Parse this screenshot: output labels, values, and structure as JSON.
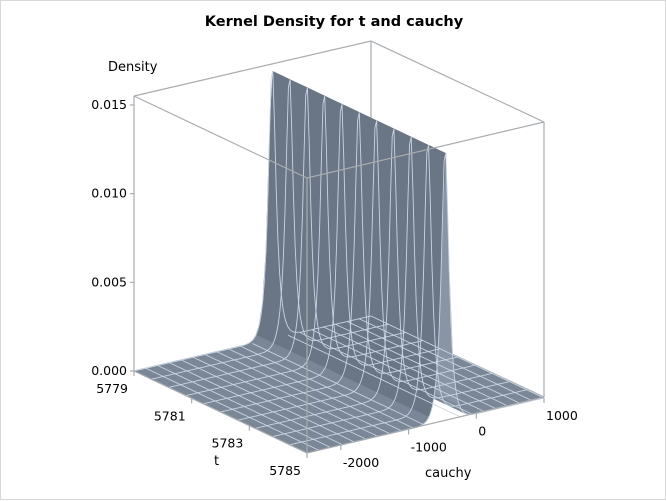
{
  "chart_data": {
    "type": "surface3d",
    "title": "Kernel Density for t and cauchy",
    "zlabel": "Density",
    "xlabel": "t",
    "ylabel": "cauchy",
    "z_ticks": [
      "0.000",
      "0.005",
      "0.010",
      "0.015"
    ],
    "z_tick_values": [
      0.0,
      0.005,
      0.01,
      0.015
    ],
    "t_ticks": [
      "5779",
      "5781",
      "5783",
      "5785"
    ],
    "t_tick_values": [
      5779,
      5781,
      5783,
      5785
    ],
    "cauchy_ticks": [
      "-2000",
      "-1000",
      "0",
      "1000"
    ],
    "cauchy_tick_values": [
      -2000,
      -1000,
      0,
      1000
    ],
    "t_range": [
      5779,
      5785
    ],
    "cauchy_range": [
      -2500,
      1000
    ],
    "zlim": [
      0,
      0.0157
    ],
    "peak": {
      "cauchy": -460,
      "t_span": [
        5779,
        5785
      ],
      "density": 0.0154,
      "width_cauchy": 90
    },
    "surface_color": "#7b8797",
    "grid_color": "#c9d5e4",
    "grid": {
      "t_divisions": 10,
      "cauchy_divisions": 20
    },
    "description": "Kernel density surface is near zero everywhere except a sharp ridge along t at cauchy ≈ -460 reaching ~0.0154."
  }
}
